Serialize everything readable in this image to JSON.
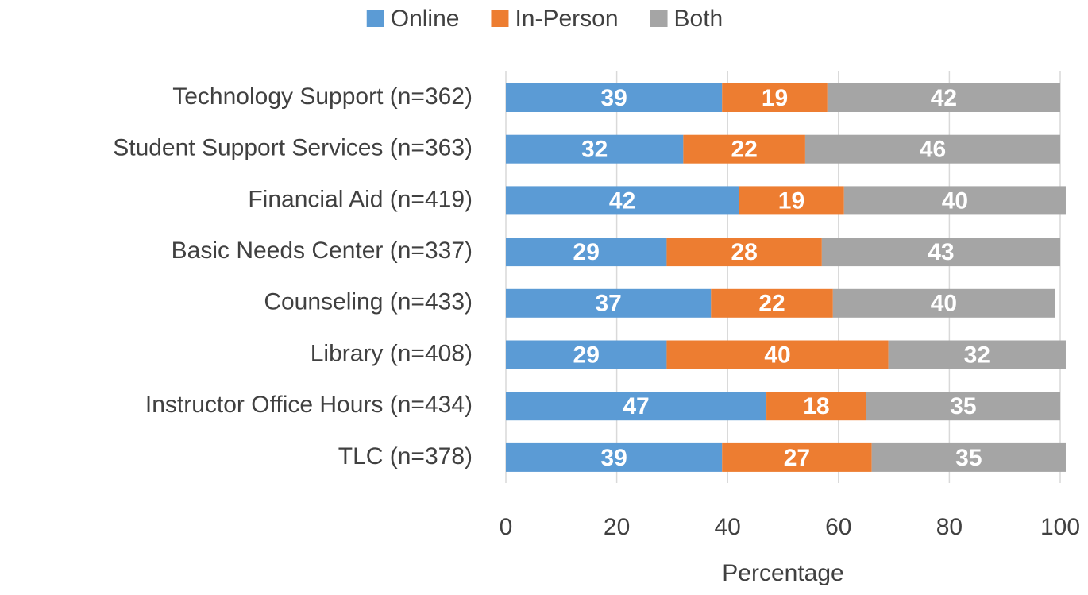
{
  "chart_data": {
    "type": "stacked_barh",
    "x_label": "Percentage",
    "categories": [
      "Technology Support (n=362)",
      "Student Support Services (n=363)",
      "Financial Aid (n=419)",
      "Basic Needs Center (n=337)",
      "Counseling (n=433)",
      "Library (n=408)",
      "Instructor Office Hours (n=434)",
      "TLC (n=378)"
    ],
    "series": [
      {
        "name": "Online",
        "color": "#5b9bd5",
        "values": [
          39,
          32,
          42,
          29,
          37,
          29,
          47,
          39
        ]
      },
      {
        "name": "In-Person",
        "color": "#ed7d31",
        "values": [
          19,
          22,
          19,
          28,
          22,
          40,
          18,
          27
        ]
      },
      {
        "name": "Both",
        "color": "#a5a5a5",
        "values": [
          42,
          46,
          40,
          43,
          40,
          32,
          35,
          35
        ]
      }
    ],
    "xlim": [
      0,
      100
    ],
    "xticks": [
      0,
      20,
      40,
      60,
      80,
      100
    ],
    "grid": true,
    "legend": "top"
  }
}
